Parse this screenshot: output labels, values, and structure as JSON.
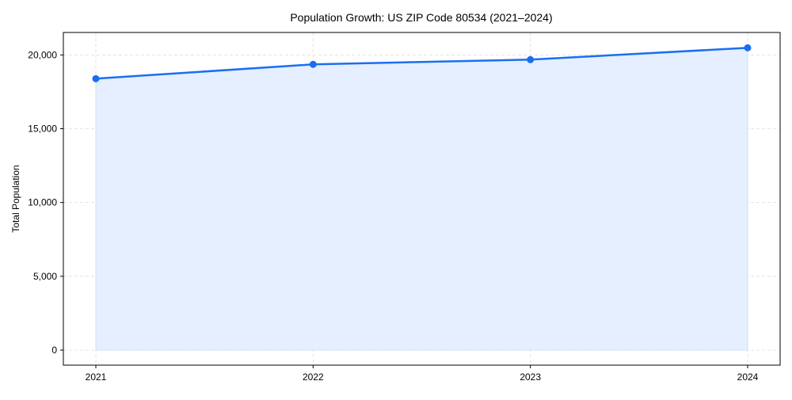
{
  "chart_data": {
    "type": "line",
    "title": "Population Growth: US ZIP Code 80534 (2021–2024)",
    "xlabel": "",
    "ylabel": "Total Population",
    "categories": [
      "2021",
      "2022",
      "2023",
      "2024"
    ],
    "series": [
      {
        "name": "Total Population",
        "values": [
          18390,
          19360,
          19680,
          20480
        ]
      }
    ],
    "yticks": [
      0,
      5000,
      10000,
      15000,
      20000
    ],
    "ytick_labels": [
      "0",
      "5,000",
      "10,000",
      "15,000",
      "20,000"
    ],
    "ylim": [
      -1020,
      21520
    ],
    "grid": true,
    "area_fill": true,
    "colors": {
      "line": "#1a6ff0",
      "fill": "#e5efff",
      "grid": "#dddddd"
    }
  }
}
